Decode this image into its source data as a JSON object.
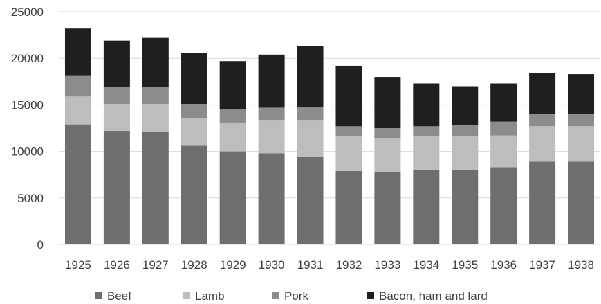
{
  "chart_data": {
    "type": "bar",
    "stacked": true,
    "title": "",
    "xlabel": "",
    "ylabel": "",
    "ylim": [
      0,
      25000
    ],
    "yticks": [
      0,
      5000,
      10000,
      15000,
      20000,
      25000
    ],
    "ytick_labels": [
      "0",
      "5000",
      "10000",
      "15000",
      "20000",
      "25000"
    ],
    "grid": "horizontal",
    "legend_position": "bottom",
    "categories": [
      "1925",
      "1926",
      "1927",
      "1928",
      "1929",
      "1930",
      "1931",
      "1932",
      "1933",
      "1934",
      "1935",
      "1936",
      "1937",
      "1938"
    ],
    "series": [
      {
        "name": "Beef",
        "color": "#6e6e6e",
        "values": [
          12900,
          12200,
          12100,
          10600,
          10000,
          9800,
          9400,
          7900,
          7800,
          8000,
          8000,
          8300,
          8900,
          8900
        ]
      },
      {
        "name": "Lamb",
        "color": "#bdbdbd",
        "values": [
          3000,
          2900,
          3000,
          3000,
          3100,
          3500,
          3900,
          3700,
          3600,
          3600,
          3600,
          3400,
          3800,
          3800
        ]
      },
      {
        "name": "Pork",
        "color": "#8c8c8c",
        "values": [
          2200,
          1800,
          1800,
          1500,
          1400,
          1400,
          1500,
          1100,
          1100,
          1100,
          1200,
          1500,
          1300,
          1300
        ]
      },
      {
        "name": "Bacon, ham and lard",
        "color": "#1f1f1f",
        "values": [
          5100,
          5000,
          5300,
          5500,
          5200,
          5700,
          6500,
          6500,
          5500,
          4600,
          4200,
          4100,
          4400,
          4300
        ]
      }
    ]
  }
}
